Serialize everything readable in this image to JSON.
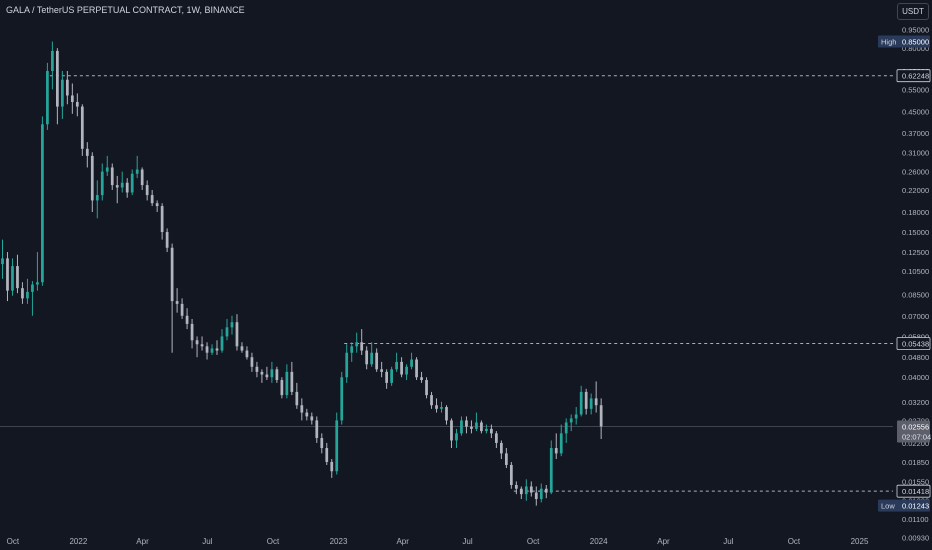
{
  "header": {
    "title": "GALA / TetherUS PERPETUAL CONTRACT, 1W, BINANCE",
    "currency_button": "USDT"
  },
  "colors": {
    "background": "#131722",
    "up_candle": "#26a69a",
    "down_candle": "#b2b5be",
    "text": "#b2b5be",
    "level_line": "#d1d4dc",
    "high_label_bg": "#2a3a5a"
  },
  "chart_data": {
    "type": "candlestick",
    "title": "GALA / TetherUS PERPETUAL CONTRACT, 1W, BINANCE",
    "y_scale": "log",
    "ylim": [
      0.0083,
      1.24
    ],
    "xlim": [
      "2021-09-13",
      "2025-02-10"
    ],
    "x_ticks": [
      {
        "date": "2021-10-01",
        "label": "Oct"
      },
      {
        "date": "2022-01-01",
        "label": "2022"
      },
      {
        "date": "2022-04-01",
        "label": "Apr"
      },
      {
        "date": "2022-07-01",
        "label": "Jul"
      },
      {
        "date": "2022-10-01",
        "label": "Oct"
      },
      {
        "date": "2023-01-01",
        "label": "2023"
      },
      {
        "date": "2023-04-01",
        "label": "Apr"
      },
      {
        "date": "2023-07-01",
        "label": "Jul"
      },
      {
        "date": "2023-10-01",
        "label": "Oct"
      },
      {
        "date": "2024-01-01",
        "label": "2024"
      },
      {
        "date": "2024-04-01",
        "label": "Apr"
      },
      {
        "date": "2024-07-01",
        "label": "Jul"
      },
      {
        "date": "2024-10-01",
        "label": "Oct"
      },
      {
        "date": "2025-01-01",
        "label": "2025"
      }
    ],
    "y_ticks": [
      1.15,
      0.95,
      0.8,
      0.65,
      0.55,
      0.45,
      0.37,
      0.31,
      0.26,
      0.22,
      0.18,
      0.15,
      0.125,
      0.105,
      0.085,
      0.07,
      0.058,
      0.048,
      0.04,
      0.032,
      0.027,
      0.022,
      0.0185,
      0.0155,
      0.013,
      0.011,
      0.0093
    ],
    "levels": [
      {
        "value": 0.62248,
        "label": "0.62248",
        "from": "2021-11-22"
      },
      {
        "value": 0.05438,
        "label": "0.05438",
        "from": "2023-01-09"
      },
      {
        "value": 0.01418,
        "label": "0.01418",
        "from": "2023-09-04"
      }
    ],
    "current_price": {
      "value": 0.02556,
      "label": "0.02556",
      "countdown": "02:07:04"
    },
    "high": {
      "label": "High",
      "value": 0.85,
      "value_label": "0.85000"
    },
    "low": {
      "label": "Low",
      "value": 0.01243,
      "value_label": "0.01243"
    },
    "candles": [
      {
        "d": "2021-09-13",
        "o": 0.112,
        "h": 0.14,
        "l": 0.098,
        "c": 0.118
      },
      {
        "d": "2021-09-20",
        "o": 0.118,
        "h": 0.125,
        "l": 0.08,
        "c": 0.088
      },
      {
        "d": "2021-09-27",
        "o": 0.088,
        "h": 0.118,
        "l": 0.084,
        "c": 0.11
      },
      {
        "d": "2021-10-04",
        "o": 0.11,
        "h": 0.122,
        "l": 0.086,
        "c": 0.09
      },
      {
        "d": "2021-10-11",
        "o": 0.09,
        "h": 0.095,
        "l": 0.078,
        "c": 0.082
      },
      {
        "d": "2021-10-18",
        "o": 0.082,
        "h": 0.098,
        "l": 0.078,
        "c": 0.087
      },
      {
        "d": "2021-10-25",
        "o": 0.087,
        "h": 0.096,
        "l": 0.07,
        "c": 0.093
      },
      {
        "d": "2021-11-01",
        "o": 0.093,
        "h": 0.125,
        "l": 0.088,
        "c": 0.095
      },
      {
        "d": "2021-11-08",
        "o": 0.095,
        "h": 0.43,
        "l": 0.092,
        "c": 0.4
      },
      {
        "d": "2021-11-15",
        "o": 0.4,
        "h": 0.7,
        "l": 0.38,
        "c": 0.65
      },
      {
        "d": "2021-11-22",
        "o": 0.65,
        "h": 0.85,
        "l": 0.55,
        "c": 0.78
      },
      {
        "d": "2021-11-29",
        "o": 0.78,
        "h": 0.8,
        "l": 0.4,
        "c": 0.47
      },
      {
        "d": "2021-12-06",
        "o": 0.47,
        "h": 0.65,
        "l": 0.42,
        "c": 0.6
      },
      {
        "d": "2021-12-13",
        "o": 0.6,
        "h": 0.65,
        "l": 0.48,
        "c": 0.52
      },
      {
        "d": "2021-12-20",
        "o": 0.52,
        "h": 0.58,
        "l": 0.44,
        "c": 0.49
      },
      {
        "d": "2021-12-27",
        "o": 0.49,
        "h": 0.53,
        "l": 0.43,
        "c": 0.47
      },
      {
        "d": "2022-01-03",
        "o": 0.47,
        "h": 0.48,
        "l": 0.3,
        "c": 0.32
      },
      {
        "d": "2022-01-10",
        "o": 0.32,
        "h": 0.34,
        "l": 0.27,
        "c": 0.3
      },
      {
        "d": "2022-01-17",
        "o": 0.3,
        "h": 0.31,
        "l": 0.18,
        "c": 0.2
      },
      {
        "d": "2022-01-24",
        "o": 0.2,
        "h": 0.24,
        "l": 0.17,
        "c": 0.21
      },
      {
        "d": "2022-01-31",
        "o": 0.21,
        "h": 0.28,
        "l": 0.2,
        "c": 0.26
      },
      {
        "d": "2022-02-07",
        "o": 0.26,
        "h": 0.3,
        "l": 0.25,
        "c": 0.27
      },
      {
        "d": "2022-02-14",
        "o": 0.27,
        "h": 0.28,
        "l": 0.22,
        "c": 0.23
      },
      {
        "d": "2022-02-21",
        "o": 0.23,
        "h": 0.25,
        "l": 0.195,
        "c": 0.225
      },
      {
        "d": "2022-02-28",
        "o": 0.225,
        "h": 0.26,
        "l": 0.215,
        "c": 0.235
      },
      {
        "d": "2022-03-07",
        "o": 0.235,
        "h": 0.245,
        "l": 0.205,
        "c": 0.215
      },
      {
        "d": "2022-03-14",
        "o": 0.215,
        "h": 0.265,
        "l": 0.21,
        "c": 0.255
      },
      {
        "d": "2022-03-21",
        "o": 0.255,
        "h": 0.3,
        "l": 0.245,
        "c": 0.265
      },
      {
        "d": "2022-03-28",
        "o": 0.265,
        "h": 0.27,
        "l": 0.22,
        "c": 0.23
      },
      {
        "d": "2022-04-04",
        "o": 0.23,
        "h": 0.24,
        "l": 0.2,
        "c": 0.21
      },
      {
        "d": "2022-04-11",
        "o": 0.21,
        "h": 0.22,
        "l": 0.19,
        "c": 0.195
      },
      {
        "d": "2022-04-18",
        "o": 0.195,
        "h": 0.2,
        "l": 0.18,
        "c": 0.19
      },
      {
        "d": "2022-04-25",
        "o": 0.19,
        "h": 0.195,
        "l": 0.14,
        "c": 0.15
      },
      {
        "d": "2022-05-02",
        "o": 0.15,
        "h": 0.155,
        "l": 0.125,
        "c": 0.13
      },
      {
        "d": "2022-05-09",
        "o": 0.13,
        "h": 0.135,
        "l": 0.05,
        "c": 0.08
      },
      {
        "d": "2022-05-16",
        "o": 0.08,
        "h": 0.09,
        "l": 0.072,
        "c": 0.078
      },
      {
        "d": "2022-05-23",
        "o": 0.078,
        "h": 0.082,
        "l": 0.068,
        "c": 0.07
      },
      {
        "d": "2022-05-30",
        "o": 0.07,
        "h": 0.075,
        "l": 0.062,
        "c": 0.065
      },
      {
        "d": "2022-06-06",
        "o": 0.065,
        "h": 0.068,
        "l": 0.052,
        "c": 0.056
      },
      {
        "d": "2022-06-13",
        "o": 0.056,
        "h": 0.058,
        "l": 0.048,
        "c": 0.054
      },
      {
        "d": "2022-06-20",
        "o": 0.054,
        "h": 0.058,
        "l": 0.051,
        "c": 0.053
      },
      {
        "d": "2022-06-27",
        "o": 0.053,
        "h": 0.055,
        "l": 0.047,
        "c": 0.05
      },
      {
        "d": "2022-07-04",
        "o": 0.05,
        "h": 0.054,
        "l": 0.049,
        "c": 0.052
      },
      {
        "d": "2022-07-11",
        "o": 0.052,
        "h": 0.056,
        "l": 0.049,
        "c": 0.051
      },
      {
        "d": "2022-07-18",
        "o": 0.051,
        "h": 0.062,
        "l": 0.05,
        "c": 0.058
      },
      {
        "d": "2022-07-25",
        "o": 0.058,
        "h": 0.068,
        "l": 0.056,
        "c": 0.063
      },
      {
        "d": "2022-08-01",
        "o": 0.063,
        "h": 0.07,
        "l": 0.059,
        "c": 0.066
      },
      {
        "d": "2022-08-08",
        "o": 0.066,
        "h": 0.071,
        "l": 0.051,
        "c": 0.053
      },
      {
        "d": "2022-08-15",
        "o": 0.053,
        "h": 0.055,
        "l": 0.05,
        "c": 0.051
      },
      {
        "d": "2022-08-22",
        "o": 0.051,
        "h": 0.053,
        "l": 0.047,
        "c": 0.048
      },
      {
        "d": "2022-08-29",
        "o": 0.048,
        "h": 0.05,
        "l": 0.042,
        "c": 0.044
      },
      {
        "d": "2022-09-05",
        "o": 0.044,
        "h": 0.046,
        "l": 0.04,
        "c": 0.042
      },
      {
        "d": "2022-09-12",
        "o": 0.042,
        "h": 0.043,
        "l": 0.038,
        "c": 0.041
      },
      {
        "d": "2022-09-19",
        "o": 0.041,
        "h": 0.044,
        "l": 0.039,
        "c": 0.04
      },
      {
        "d": "2022-09-26",
        "o": 0.04,
        "h": 0.046,
        "l": 0.038,
        "c": 0.043
      },
      {
        "d": "2022-10-03",
        "o": 0.043,
        "h": 0.044,
        "l": 0.038,
        "c": 0.039
      },
      {
        "d": "2022-10-10",
        "o": 0.039,
        "h": 0.04,
        "l": 0.033,
        "c": 0.034
      },
      {
        "d": "2022-10-17",
        "o": 0.034,
        "h": 0.045,
        "l": 0.033,
        "c": 0.042
      },
      {
        "d": "2022-10-24",
        "o": 0.042,
        "h": 0.046,
        "l": 0.034,
        "c": 0.035
      },
      {
        "d": "2022-10-31",
        "o": 0.035,
        "h": 0.038,
        "l": 0.03,
        "c": 0.031
      },
      {
        "d": "2022-11-07",
        "o": 0.031,
        "h": 0.033,
        "l": 0.027,
        "c": 0.029
      },
      {
        "d": "2022-11-14",
        "o": 0.029,
        "h": 0.03,
        "l": 0.027,
        "c": 0.028
      },
      {
        "d": "2022-11-21",
        "o": 0.028,
        "h": 0.029,
        "l": 0.026,
        "c": 0.027
      },
      {
        "d": "2022-11-28",
        "o": 0.027,
        "h": 0.028,
        "l": 0.022,
        "c": 0.023
      },
      {
        "d": "2022-12-05",
        "o": 0.023,
        "h": 0.024,
        "l": 0.02,
        "c": 0.021
      },
      {
        "d": "2022-12-12",
        "o": 0.021,
        "h": 0.022,
        "l": 0.018,
        "c": 0.0185
      },
      {
        "d": "2022-12-19",
        "o": 0.0185,
        "h": 0.019,
        "l": 0.016,
        "c": 0.017
      },
      {
        "d": "2022-12-26",
        "o": 0.017,
        "h": 0.029,
        "l": 0.0165,
        "c": 0.027
      },
      {
        "d": "2023-01-02",
        "o": 0.027,
        "h": 0.042,
        "l": 0.026,
        "c": 0.04
      },
      {
        "d": "2023-01-09",
        "o": 0.04,
        "h": 0.054,
        "l": 0.038,
        "c": 0.05
      },
      {
        "d": "2023-01-16",
        "o": 0.05,
        "h": 0.055,
        "l": 0.046,
        "c": 0.053
      },
      {
        "d": "2023-01-23",
        "o": 0.053,
        "h": 0.06,
        "l": 0.05,
        "c": 0.055
      },
      {
        "d": "2023-01-30",
        "o": 0.055,
        "h": 0.062,
        "l": 0.049,
        "c": 0.051
      },
      {
        "d": "2023-02-06",
        "o": 0.051,
        "h": 0.053,
        "l": 0.043,
        "c": 0.045
      },
      {
        "d": "2023-02-13",
        "o": 0.045,
        "h": 0.055,
        "l": 0.044,
        "c": 0.05
      },
      {
        "d": "2023-02-20",
        "o": 0.05,
        "h": 0.052,
        "l": 0.042,
        "c": 0.043
      },
      {
        "d": "2023-02-27",
        "o": 0.043,
        "h": 0.046,
        "l": 0.04,
        "c": 0.042
      },
      {
        "d": "2023-03-06",
        "o": 0.042,
        "h": 0.043,
        "l": 0.036,
        "c": 0.038
      },
      {
        "d": "2023-03-13",
        "o": 0.038,
        "h": 0.044,
        "l": 0.037,
        "c": 0.043
      },
      {
        "d": "2023-03-20",
        "o": 0.043,
        "h": 0.05,
        "l": 0.042,
        "c": 0.046
      },
      {
        "d": "2023-03-27",
        "o": 0.046,
        "h": 0.048,
        "l": 0.04,
        "c": 0.041
      },
      {
        "d": "2023-04-03",
        "o": 0.041,
        "h": 0.045,
        "l": 0.039,
        "c": 0.044
      },
      {
        "d": "2023-04-10",
        "o": 0.044,
        "h": 0.05,
        "l": 0.043,
        "c": 0.047
      },
      {
        "d": "2023-04-17",
        "o": 0.047,
        "h": 0.048,
        "l": 0.039,
        "c": 0.04
      },
      {
        "d": "2023-04-24",
        "o": 0.04,
        "h": 0.042,
        "l": 0.038,
        "c": 0.039
      },
      {
        "d": "2023-05-01",
        "o": 0.039,
        "h": 0.04,
        "l": 0.033,
        "c": 0.034
      },
      {
        "d": "2023-05-08",
        "o": 0.034,
        "h": 0.035,
        "l": 0.03,
        "c": 0.031
      },
      {
        "d": "2023-05-15",
        "o": 0.031,
        "h": 0.033,
        "l": 0.029,
        "c": 0.03
      },
      {
        "d": "2023-05-22",
        "o": 0.03,
        "h": 0.032,
        "l": 0.029,
        "c": 0.0305
      },
      {
        "d": "2023-05-29",
        "o": 0.0305,
        "h": 0.031,
        "l": 0.026,
        "c": 0.027
      },
      {
        "d": "2023-06-05",
        "o": 0.027,
        "h": 0.0275,
        "l": 0.021,
        "c": 0.0225
      },
      {
        "d": "2023-06-12",
        "o": 0.0225,
        "h": 0.025,
        "l": 0.021,
        "c": 0.024
      },
      {
        "d": "2023-06-19",
        "o": 0.024,
        "h": 0.028,
        "l": 0.0235,
        "c": 0.027
      },
      {
        "d": "2023-06-26",
        "o": 0.027,
        "h": 0.028,
        "l": 0.024,
        "c": 0.0255
      },
      {
        "d": "2023-07-03",
        "o": 0.0255,
        "h": 0.027,
        "l": 0.024,
        "c": 0.025
      },
      {
        "d": "2023-07-10",
        "o": 0.025,
        "h": 0.029,
        "l": 0.0245,
        "c": 0.0265
      },
      {
        "d": "2023-07-17",
        "o": 0.0265,
        "h": 0.027,
        "l": 0.024,
        "c": 0.0245
      },
      {
        "d": "2023-07-24",
        "o": 0.0245,
        "h": 0.026,
        "l": 0.024,
        "c": 0.025
      },
      {
        "d": "2023-07-31",
        "o": 0.025,
        "h": 0.026,
        "l": 0.023,
        "c": 0.024
      },
      {
        "d": "2023-08-07",
        "o": 0.024,
        "h": 0.0245,
        "l": 0.021,
        "c": 0.022
      },
      {
        "d": "2023-08-14",
        "o": 0.022,
        "h": 0.0225,
        "l": 0.019,
        "c": 0.02
      },
      {
        "d": "2023-08-21",
        "o": 0.02,
        "h": 0.021,
        "l": 0.0175,
        "c": 0.018
      },
      {
        "d": "2023-08-28",
        "o": 0.018,
        "h": 0.0185,
        "l": 0.0145,
        "c": 0.015
      },
      {
        "d": "2023-09-04",
        "o": 0.015,
        "h": 0.0155,
        "l": 0.0138,
        "c": 0.0145
      },
      {
        "d": "2023-09-11",
        "o": 0.0145,
        "h": 0.0148,
        "l": 0.0132,
        "c": 0.0138
      },
      {
        "d": "2023-09-18",
        "o": 0.0138,
        "h": 0.0158,
        "l": 0.013,
        "c": 0.0148
      },
      {
        "d": "2023-09-25",
        "o": 0.0148,
        "h": 0.0155,
        "l": 0.0135,
        "c": 0.014
      },
      {
        "d": "2023-10-02",
        "o": 0.014,
        "h": 0.0148,
        "l": 0.01243,
        "c": 0.0132
      },
      {
        "d": "2023-10-09",
        "o": 0.0132,
        "h": 0.0152,
        "l": 0.0128,
        "c": 0.0145
      },
      {
        "d": "2023-10-16",
        "o": 0.0145,
        "h": 0.015,
        "l": 0.0133,
        "c": 0.014
      },
      {
        "d": "2023-10-23",
        "o": 0.014,
        "h": 0.0225,
        "l": 0.0138,
        "c": 0.021
      },
      {
        "d": "2023-10-30",
        "o": 0.021,
        "h": 0.024,
        "l": 0.019,
        "c": 0.02
      },
      {
        "d": "2023-11-06",
        "o": 0.02,
        "h": 0.026,
        "l": 0.0195,
        "c": 0.024
      },
      {
        "d": "2023-11-13",
        "o": 0.024,
        "h": 0.0275,
        "l": 0.022,
        "c": 0.0265
      },
      {
        "d": "2023-11-20",
        "o": 0.0265,
        "h": 0.0285,
        "l": 0.0245,
        "c": 0.0275
      },
      {
        "d": "2023-11-27",
        "o": 0.0275,
        "h": 0.0305,
        "l": 0.026,
        "c": 0.0285
      },
      {
        "d": "2023-12-04",
        "o": 0.0285,
        "h": 0.037,
        "l": 0.028,
        "c": 0.035
      },
      {
        "d": "2023-12-11",
        "o": 0.035,
        "h": 0.036,
        "l": 0.0285,
        "c": 0.03
      },
      {
        "d": "2023-12-18",
        "o": 0.03,
        "h": 0.0345,
        "l": 0.0285,
        "c": 0.033
      },
      {
        "d": "2023-12-25",
        "o": 0.033,
        "h": 0.0385,
        "l": 0.029,
        "c": 0.031
      },
      {
        "d": "2024-01-01",
        "o": 0.031,
        "h": 0.033,
        "l": 0.0228,
        "c": 0.02556
      }
    ]
  }
}
